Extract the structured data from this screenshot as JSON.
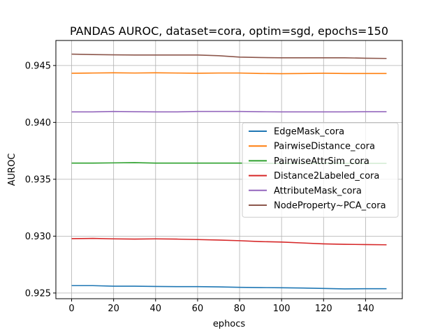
{
  "chart_data": {
    "type": "line",
    "title": "PANDAS AUROC, dataset=cora, optim=sgd, epochs=150",
    "xlabel": "ephocs",
    "ylabel": "AUROC",
    "xlim": [
      -7.5,
      157.5
    ],
    "ylim": [
      0.9245,
      0.9472
    ],
    "xticks": [
      0,
      20,
      40,
      60,
      80,
      100,
      120,
      140
    ],
    "yticks": [
      0.925,
      0.93,
      0.935,
      0.94,
      0.945
    ],
    "ytick_labels": [
      "0.925",
      "0.930",
      "0.935",
      "0.940",
      "0.945"
    ],
    "grid": true,
    "legend_position": "center-right",
    "x": [
      0,
      10,
      20,
      30,
      40,
      50,
      60,
      70,
      80,
      90,
      100,
      110,
      120,
      130,
      140,
      150
    ],
    "series": [
      {
        "name": "EdgeMask_cora",
        "color": "#1f77b4",
        "values": [
          0.92565,
          0.92565,
          0.9256,
          0.9256,
          0.92558,
          0.92556,
          0.92556,
          0.92554,
          0.9255,
          0.92548,
          0.92546,
          0.92544,
          0.9254,
          0.92536,
          0.92538,
          0.92538
        ]
      },
      {
        "name": "PairwiseDistance_cora",
        "color": "#ff7f0e",
        "values": [
          0.94432,
          0.94434,
          0.94436,
          0.94434,
          0.94436,
          0.94434,
          0.94432,
          0.94434,
          0.94434,
          0.9443,
          0.94428,
          0.9443,
          0.94432,
          0.9443,
          0.9443,
          0.9443
        ]
      },
      {
        "name": "PairwiseAttrSim_cora",
        "color": "#2ca02c",
        "values": [
          0.93642,
          0.93642,
          0.93644,
          0.93646,
          0.93642,
          0.93642,
          0.93642,
          0.93642,
          0.93642,
          0.9364,
          0.9364,
          0.9364,
          0.93642,
          0.9364,
          0.9364,
          0.9364
        ]
      },
      {
        "name": "Distance2Labeled_cora",
        "color": "#d62728",
        "values": [
          0.92978,
          0.9298,
          0.92976,
          0.92974,
          0.92976,
          0.92974,
          0.9297,
          0.92966,
          0.9296,
          0.92952,
          0.92948,
          0.9294,
          0.92932,
          0.92928,
          0.92926,
          0.92924
        ]
      },
      {
        "name": "AttributeMask_cora",
        "color": "#9467bd",
        "values": [
          0.94092,
          0.94092,
          0.94096,
          0.94094,
          0.94092,
          0.94092,
          0.94096,
          0.94096,
          0.94096,
          0.94094,
          0.94092,
          0.94092,
          0.94092,
          0.94092,
          0.94094,
          0.94094
        ]
      },
      {
        "name": "NodeProperty~PCA_cora",
        "color": "#8c564b",
        "values": [
          0.946,
          0.94596,
          0.94594,
          0.94592,
          0.94592,
          0.94592,
          0.94592,
          0.94586,
          0.94574,
          0.9457,
          0.94568,
          0.94568,
          0.94568,
          0.94568,
          0.94564,
          0.94562
        ]
      }
    ]
  }
}
